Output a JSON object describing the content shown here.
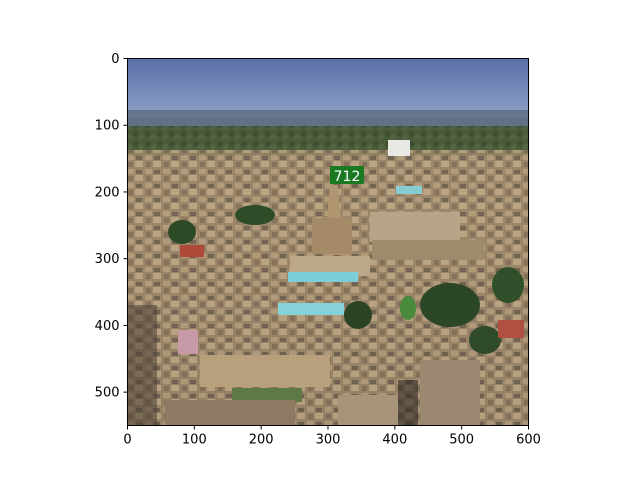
{
  "image": {
    "description_label": "aerial city photo",
    "x_axis": {
      "min": 0,
      "max": 600,
      "ticks": [
        "0",
        "100",
        "200",
        "300",
        "400",
        "500",
        "600"
      ]
    },
    "y_axis": {
      "min": 0,
      "max": 550,
      "ticks": [
        "0",
        "100",
        "200",
        "300",
        "400",
        "500"
      ]
    },
    "overlay_tag": {
      "text": "712",
      "color": "#1a7a22"
    },
    "colors": {
      "sky_top": "#6a80b6",
      "sky_bottom": "#8aa0c8",
      "horizon": "#5d7390",
      "buildings": "#a89070",
      "trees": "#2f4a2a",
      "roof_cyan": "#7ad0d8"
    }
  }
}
